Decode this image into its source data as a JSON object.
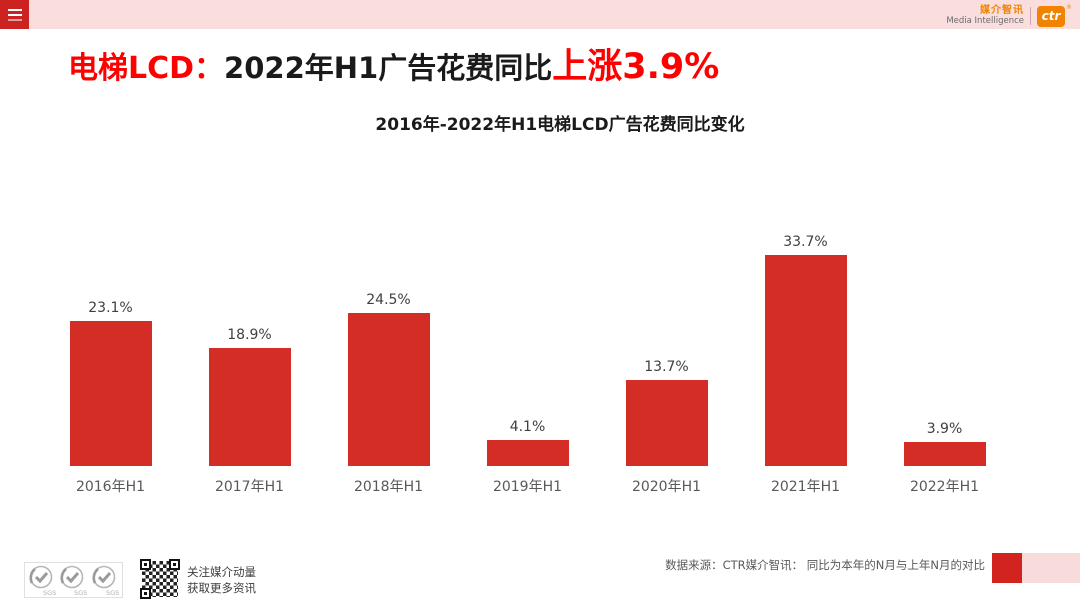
{
  "brand": {
    "logo_cn": "媒介智讯",
    "logo_en": "Media Intelligence",
    "logo_ctr": "ctr",
    "registered_mark": "®"
  },
  "title": {
    "prefix": "电梯LCD：",
    "middle": "2022年H1广告花费同比",
    "highlight": "上涨3.9%"
  },
  "chart_data": {
    "type": "bar",
    "title": "2016年-2022年H1电梯LCD广告花费同比变化",
    "categories": [
      "2016年H1",
      "2017年H1",
      "2018年H1",
      "2019年H1",
      "2020年H1",
      "2021年H1",
      "2022年H1"
    ],
    "values": [
      23.1,
      18.9,
      24.5,
      4.1,
      13.7,
      33.7,
      3.9
    ],
    "labels": [
      "23.1%",
      "18.9%",
      "24.5%",
      "4.1%",
      "13.7%",
      "33.7%",
      "3.9%"
    ],
    "ylabel": "",
    "xlabel": "",
    "ylim": [
      0,
      35
    ],
    "grid": false,
    "legend_position": "none",
    "bar_color": "#d32d26"
  },
  "footer": {
    "sgs_labels": [
      "SGS",
      "SGS",
      "SGS"
    ],
    "qr_caption_line1": "关注媒介动量",
    "qr_caption_line2": "获取更多资讯",
    "source_note": "数据来源：CTR媒介智讯：  同比为本年的N月与上年N月的对比"
  },
  "colors": {
    "accent_red": "#d32d26",
    "title_red": "#fe0000",
    "strip_pink": "#fadddd",
    "menu_red": "#cd2222",
    "logo_orange": "#f08300",
    "footer_pink": "#f8dbdb"
  }
}
